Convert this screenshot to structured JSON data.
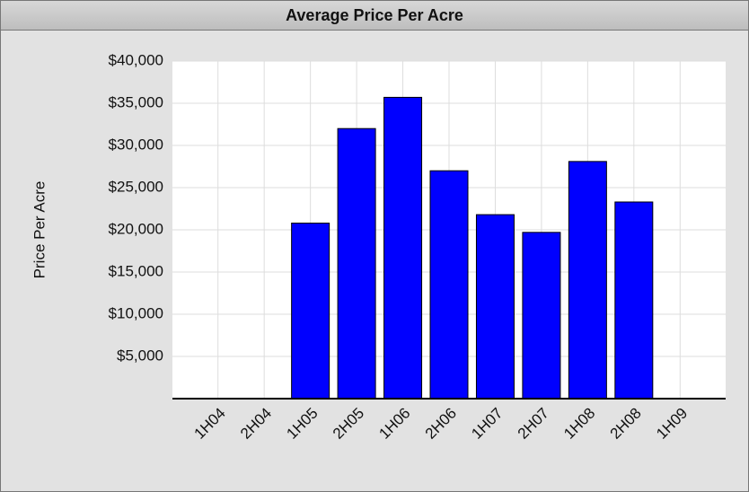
{
  "chart_data": {
    "type": "bar",
    "title": "Average Price Per Acre",
    "y_label": "Price Per Acre",
    "categories": [
      "1H04",
      "2H04",
      "1H05",
      "2H05",
      "1H06",
      "2H06",
      "1H07",
      "2H07",
      "1H08",
      "2H08",
      "1H09"
    ],
    "values": [
      null,
      null,
      20800,
      32000,
      35700,
      27000,
      21800,
      19700,
      28100,
      23300,
      null
    ],
    "color": "#0000ff",
    "ylim": [
      0,
      40000
    ],
    "yticks": [
      {
        "value": 5000,
        "label": "$5,000"
      },
      {
        "value": 10000,
        "label": "$10,000"
      },
      {
        "value": 15000,
        "label": "$15,000"
      },
      {
        "value": 20000,
        "label": "$20,000"
      },
      {
        "value": 25000,
        "label": "$25,000"
      },
      {
        "value": 30000,
        "label": "$30,000"
      },
      {
        "value": 35000,
        "label": "$35,000"
      },
      {
        "value": 40000,
        "label": "$40,000"
      }
    ],
    "grid": true
  }
}
